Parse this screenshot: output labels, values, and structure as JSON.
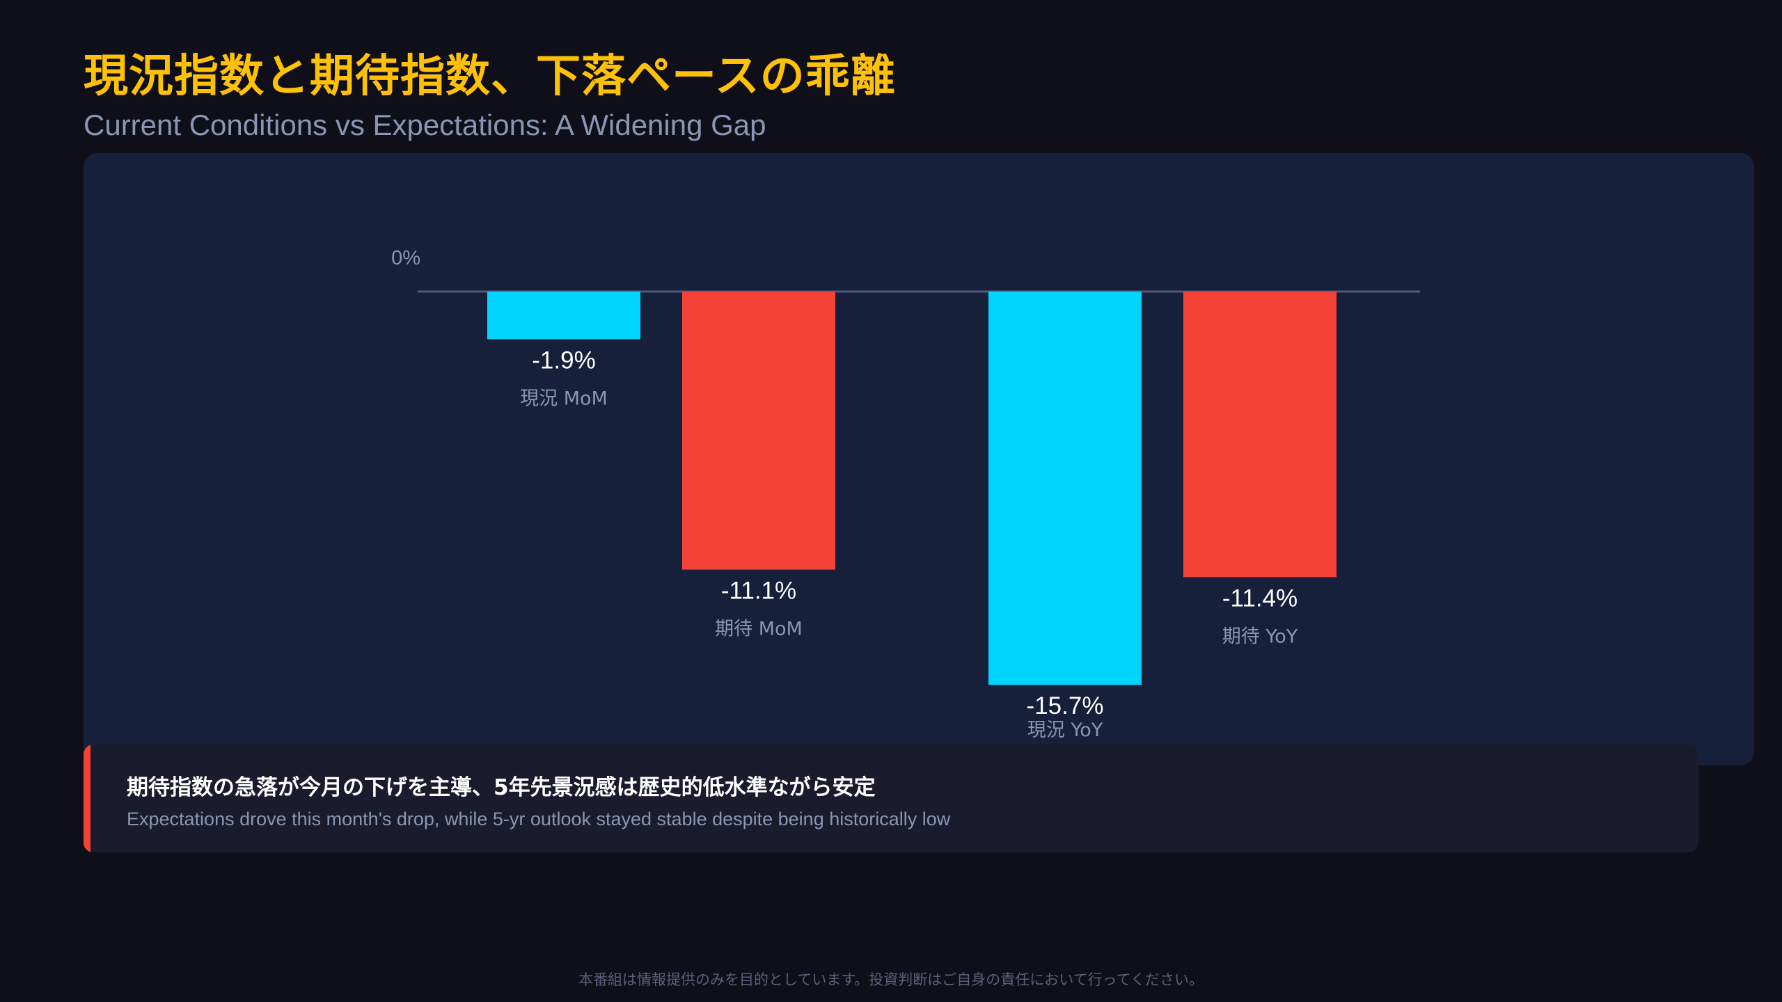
{
  "header": {
    "title": "現況指数と期待指数、下落ペースの乖離",
    "subtitle": "Current Conditions vs Expectations: A Widening Gap"
  },
  "chart_data": {
    "type": "bar",
    "title": "現況指数と期待指数、下落ペースの乖離",
    "subtitle": "Current Conditions vs Expectations: A Widening Gap",
    "categories": [
      "現況 MoM",
      "期待 MoM",
      "現況 YoY",
      "期待 YoY"
    ],
    "values": [
      -1.9,
      -11.1,
      -15.7,
      -11.4
    ],
    "value_labels": [
      "-1.9%",
      "-11.1%",
      "-15.7%",
      "-11.4%"
    ],
    "series_index": [
      0,
      1,
      0,
      1
    ],
    "series": [
      {
        "values": [
          -1.9,
          null,
          -15.7,
          null
        ],
        "color": "#00d4ff"
      },
      {
        "values": [
          null,
          -11.1,
          null,
          -11.4
        ],
        "color": "#f44336"
      }
    ],
    "zero_label": "0%",
    "ylim": [
      -15.7,
      0
    ],
    "grid": false,
    "legend": "none"
  },
  "callout": {
    "main": "期待指数の急落が今月の下げを主導、5年先景況感は歴史的低水準ながら安定",
    "sub": "Expectations drove this month's drop, while 5-yr outlook stayed stable despite being historically low",
    "accent_color": "#f44336"
  },
  "footer": {
    "disclaimer": "本番組は情報提供のみを目的としています。投資判断はご自身の責任において行ってください。"
  }
}
